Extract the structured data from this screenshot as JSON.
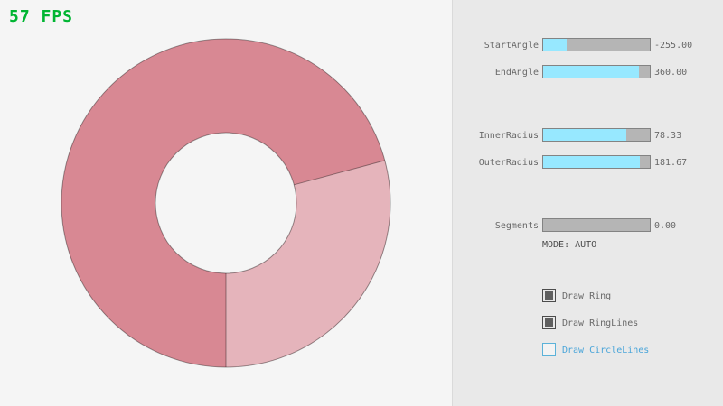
{
  "fps": {
    "label": "57 FPS",
    "color": "#00b532"
  },
  "ring": {
    "colors": {
      "overlap": "#d88893",
      "base": "#e5b4bb",
      "outline": "rgba(0,0,0,0.38)"
    }
  },
  "panel": {
    "sliders": [
      {
        "id": "start-angle",
        "label": "StartAngle",
        "value": "-255.00",
        "fill_percent": 21.7
      },
      {
        "id": "end-angle",
        "label": "EndAngle",
        "value": "360.00",
        "fill_percent": 90.0
      },
      {
        "id": "inner-radius",
        "label": "InnerRadius",
        "value": "78.33",
        "fill_percent": 78.3
      },
      {
        "id": "outer-radius",
        "label": "OuterRadius",
        "value": "181.67",
        "fill_percent": 90.8
      },
      {
        "id": "segments",
        "label": "Segments",
        "value": "0.00",
        "fill_percent": 0
      }
    ],
    "accent_color": "#97e8ff",
    "mode_text": "MODE: AUTO",
    "checkboxes": [
      {
        "label": "Draw Ring",
        "checked": true
      },
      {
        "label": "Draw RingLines",
        "checked": true
      },
      {
        "label": "Draw CircleLines",
        "checked": false,
        "highlighted": true
      }
    ]
  }
}
